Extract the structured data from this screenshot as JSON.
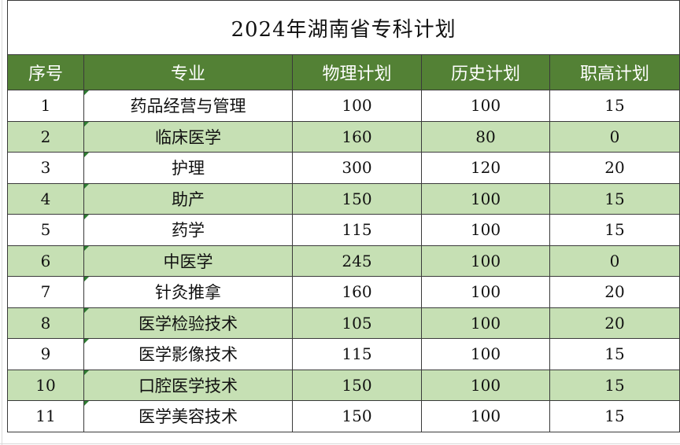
{
  "title": "2024年湖南省专科计划",
  "headers": [
    "序号",
    "专业",
    "物理计划",
    "历史计划",
    "职高计划"
  ],
  "rows": [
    {
      "no": "1",
      "major": "药品经营与管理",
      "physics": "100",
      "history": "100",
      "vocational": "15"
    },
    {
      "no": "2",
      "major": "临床医学",
      "physics": "160",
      "history": "80",
      "vocational": "0"
    },
    {
      "no": "3",
      "major": "护理",
      "physics": "300",
      "history": "120",
      "vocational": "20"
    },
    {
      "no": "4",
      "major": "助产",
      "physics": "150",
      "history": "100",
      "vocational": "15"
    },
    {
      "no": "5",
      "major": "药学",
      "physics": "115",
      "history": "100",
      "vocational": "15"
    },
    {
      "no": "6",
      "major": "中医学",
      "physics": "245",
      "history": "100",
      "vocational": "0"
    },
    {
      "no": "7",
      "major": "针灸推拿",
      "physics": "160",
      "history": "100",
      "vocational": "20"
    },
    {
      "no": "8",
      "major": "医学检验技术",
      "physics": "105",
      "history": "100",
      "vocational": "20"
    },
    {
      "no": "9",
      "major": "医学影像技术",
      "physics": "115",
      "history": "100",
      "vocational": "15"
    },
    {
      "no": "10",
      "major": "口腔医学技术",
      "physics": "150",
      "history": "100",
      "vocational": "15"
    },
    {
      "no": "11",
      "major": "医学美容技术",
      "physics": "150",
      "history": "100",
      "vocational": "15"
    }
  ],
  "colors": {
    "header_bg": "#538135",
    "band_bg": "#c6e0b4",
    "comment_marker": "#2e7d32"
  }
}
